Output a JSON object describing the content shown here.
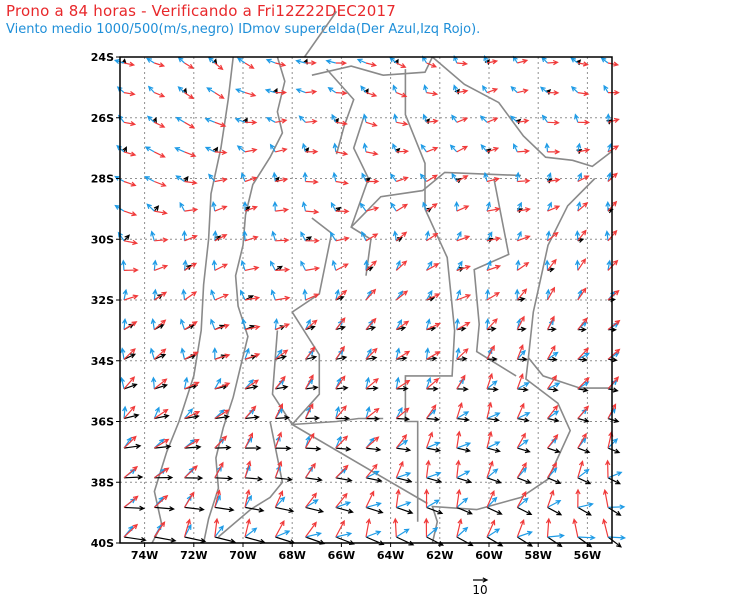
{
  "header": {
    "title": "Prono a 84 horas - Verificando a Fri12Z22DEC2017",
    "subtitle": "Viento medio 1000/500(m/s,negro) IDmov supercelda(Der Azul,Izq Rojo)."
  },
  "map": {
    "lat_range": [
      -40,
      -24
    ],
    "lon_range": [
      -75,
      -55
    ],
    "lat_labels": [
      "24S",
      "26S",
      "28S",
      "30S",
      "32S",
      "34S",
      "36S",
      "38S",
      "40S"
    ],
    "lon_labels": [
      "74W",
      "72W",
      "70W",
      "68W",
      "66W",
      "64W",
      "62W",
      "60W",
      "58W",
      "56W"
    ],
    "reference_vector_label": "10",
    "colors": {
      "mean_wind": "#000000",
      "right_mover": "#1e9be6",
      "left_mover": "#f03a3a",
      "borders": "#8a8a8a",
      "grid": "#909090"
    },
    "layers": [
      "Viento medio 1000/500 (negro)",
      "IDmov Der (Azul)",
      "IDmov Izq (Rojo)"
    ]
  }
}
